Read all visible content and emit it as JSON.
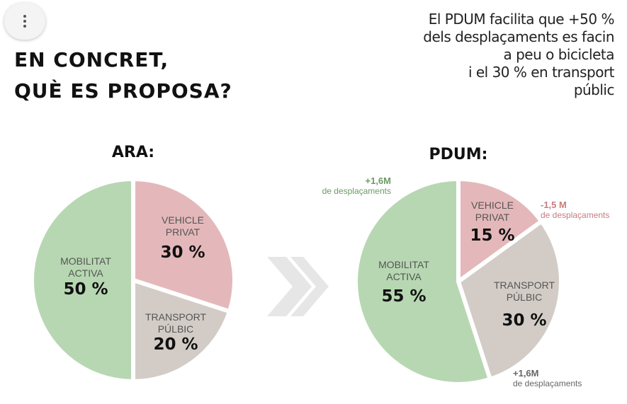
{
  "menu": {
    "icon": "more-vert-icon"
  },
  "headline": {
    "line1": "EN CONCRET,",
    "line2": "QUÈ ES PROPOSA?"
  },
  "note": {
    "lines": [
      "El PDUM facilita que +50 %",
      "dels desplaçaments es facin",
      "a peu o bicicleta",
      "i el 30 % en transport",
      "públic"
    ]
  },
  "arrow_icon": "double-chevron-right-icon",
  "colors": {
    "mobilitat": "#b7d7b2",
    "vehicle": "#e4b8ba",
    "transport": "#d3ccc6",
    "green_text": "#6a9b64",
    "red_text": "#c97b7f",
    "grey_text": "#666666",
    "arrow": "#e6e6e6"
  },
  "chart_data": [
    {
      "type": "pie",
      "title": "ARA:",
      "slices": [
        {
          "label": [
            "VEHICLE",
            "PRIVAT"
          ],
          "value": 30,
          "value_label": "30 %",
          "color": "#e4b8ba"
        },
        {
          "label": [
            "TRANSPORT",
            "PÚLBIC"
          ],
          "value": 20,
          "value_label": "20 %",
          "color": "#d3ccc6"
        },
        {
          "label": [
            "MOBILITAT",
            "ACTIVA"
          ],
          "value": 50,
          "value_label": "50 %",
          "color": "#b7d7b2"
        }
      ]
    },
    {
      "type": "pie",
      "title": "PDUM:",
      "slices": [
        {
          "label": [
            "VEHICLE",
            "PRIVAT"
          ],
          "value": 15,
          "value_label": "15 %",
          "color": "#e4b8ba",
          "annotation": {
            "value": "-1,5 M",
            "text": "de desplaçaments",
            "color": "#c97b7f"
          }
        },
        {
          "label": [
            "TRANSPORT",
            "PÚLBIC"
          ],
          "value": 30,
          "value_label": "30 %",
          "color": "#d3ccc6",
          "annotation": {
            "value": "+1,6M",
            "text": "de desplaçaments",
            "color": "#666666"
          }
        },
        {
          "label": [
            "MOBILITAT",
            "ACTIVA"
          ],
          "value": 55,
          "value_label": "55 %",
          "color": "#b7d7b2",
          "annotation": {
            "value": "+1,6M",
            "text": "de desplaçaments",
            "color": "#6a9b64"
          }
        }
      ]
    }
  ]
}
